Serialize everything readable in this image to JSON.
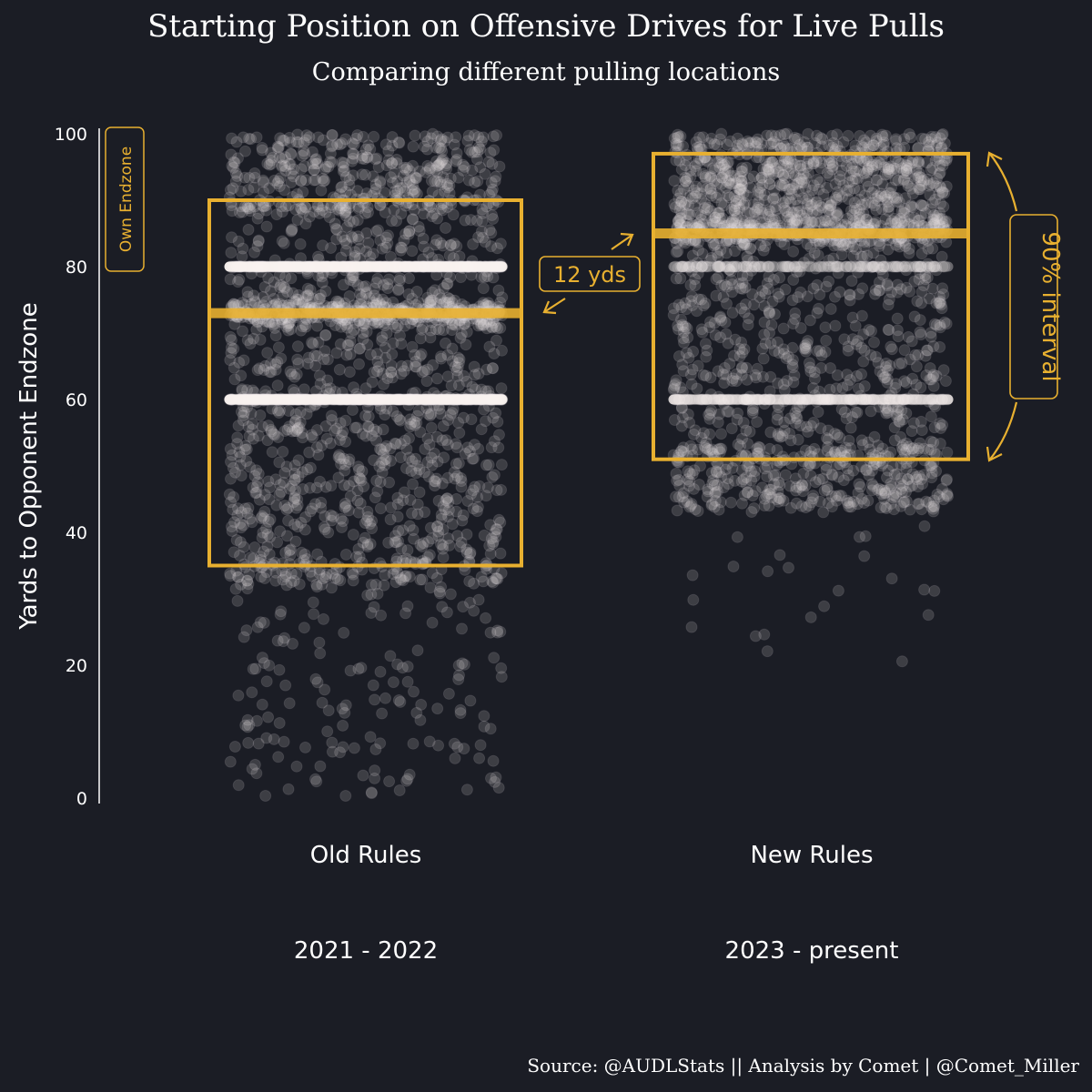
{
  "chart_data": {
    "type": "scatter",
    "title": "Starting Position on Offensive Drives for Live Pulls",
    "subtitle": "Comparing different pulling locations",
    "ylabel": "Yards to Opponent Endzone",
    "ylim": [
      0,
      100
    ],
    "yticks": [
      0,
      20,
      40,
      60,
      80,
      100
    ],
    "ytick_labels": [
      "0",
      "20",
      "40",
      "60",
      "80",
      "100"
    ],
    "grid": false,
    "groups": [
      {
        "name": "Old Rules",
        "period": "2021 - 2022",
        "interval_low": 35,
        "interval_high": 90,
        "median": 73,
        "dense_lines": [
          60,
          80
        ],
        "min": 0,
        "max": 100
      },
      {
        "name": "New Rules",
        "period": "2023 - present",
        "interval_low": 51,
        "interval_high": 97,
        "median": 85,
        "dense_lines": [
          60,
          80
        ],
        "min": 20,
        "max": 100
      }
    ],
    "annotations": {
      "endzone_label": "Own Endzone",
      "median_shift_label": "12 yds",
      "interval_label": "90% interval"
    },
    "source": "Source: @AUDLStats || Analysis by Comet | @Comet_Miller"
  },
  "colors": {
    "background": "#1b1d25",
    "accent": "#e8b030",
    "points": "#e6e2e3",
    "text": "#ffffff"
  }
}
